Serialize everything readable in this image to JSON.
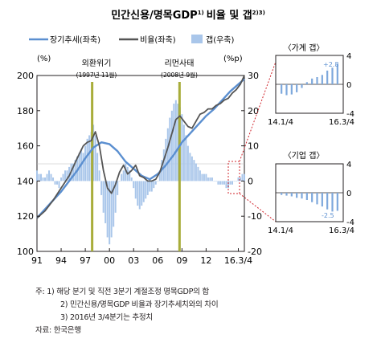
{
  "chart_data": [
    {
      "type": "bar+line",
      "title": "민간신용/명목GDP",
      "title_note": "1)",
      "title_suffix": "비율 및 갭",
      "title_suffix_note": "2)3)",
      "legend": [
        {
          "label": "장기추세(좌축)",
          "kind": "line",
          "color": "#5b8fd0"
        },
        {
          "label": "비율(좌축)",
          "kind": "line",
          "color": "#555555"
        },
        {
          "label": "갭(우축)",
          "kind": "bar",
          "color": "#a9c6ea"
        }
      ],
      "left_unit": "(%)",
      "right_unit": "(%p)",
      "left_ticks": [
        100,
        120,
        140,
        160,
        180,
        200
      ],
      "right_ticks": [
        -20,
        -10,
        0,
        10,
        20,
        30
      ],
      "x_ticks": [
        "91",
        "94",
        "97",
        "00",
        "03",
        "06",
        "09",
        "12",
        "16.3/4"
      ],
      "x_range": [
        1991.0,
        2016.75
      ],
      "left_range": [
        100,
        200
      ],
      "right_range": [
        -20,
        30
      ],
      "events": [
        {
          "label": "외환위기",
          "sub": "(1997년 11월)",
          "x": 1997.85
        },
        {
          "label": "리먼사태",
          "sub": "(2008년 9월)",
          "x": 2008.7
        }
      ],
      "trend": {
        "x": [
          1991,
          1992,
          1993,
          1994,
          1995,
          1996,
          1997,
          1998,
          1999,
          2000,
          2001,
          2002,
          2003,
          2004,
          2005,
          2006,
          2007,
          2008,
          2009,
          2010,
          2011,
          2012,
          2013,
          2014,
          2015,
          2016,
          2016.75
        ],
        "values": [
          119,
          124,
          129,
          134,
          140,
          146,
          153,
          159,
          162,
          161,
          157,
          151,
          147,
          143,
          141,
          144,
          149,
          155,
          162,
          167,
          172,
          177,
          181,
          186,
          191,
          195,
          198
        ]
      },
      "ratio": {
        "x": [
          1991,
          1992,
          1993,
          1994,
          1995,
          1996,
          1996.75,
          1997.25,
          1997.75,
          1998.25,
          1998.75,
          1999.25,
          1999.75,
          2000.25,
          2000.75,
          2001.25,
          2001.75,
          2002.25,
          2002.75,
          2003.25,
          2003.75,
          2004.25,
          2004.75,
          2005.25,
          2005.75,
          2006.25,
          2006.75,
          2007.25,
          2007.75,
          2008.25,
          2008.75,
          2009.25,
          2009.75,
          2010.25,
          2010.75,
          2011.25,
          2011.75,
          2012.25,
          2012.75,
          2013.25,
          2013.75,
          2014.25,
          2014.75,
          2015.25,
          2015.75,
          2016.25,
          2016.75
        ],
        "values": [
          119,
          123,
          129,
          136,
          143,
          153,
          160,
          162,
          163,
          168,
          160,
          146,
          136,
          133,
          138,
          145,
          149,
          144,
          146,
          149,
          143,
          142,
          140,
          140,
          141,
          145,
          152,
          159,
          167,
          175,
          177,
          174,
          171,
          170,
          174,
          178,
          179,
          181,
          181,
          183,
          184,
          186,
          187,
          190,
          192,
          195,
          200
        ]
      },
      "gap": {
        "x": [
          1991.0,
          1991.25,
          1991.5,
          1991.75,
          1992.0,
          1992.25,
          1992.5,
          1992.75,
          1993.0,
          1993.25,
          1993.5,
          1993.75,
          1994.0,
          1994.25,
          1994.5,
          1994.75,
          1995.0,
          1995.25,
          1995.5,
          1995.75,
          1996.0,
          1996.25,
          1996.5,
          1996.75,
          1997.0,
          1997.25,
          1997.5,
          1997.75,
          1998.0,
          1998.25,
          1998.5,
          1998.75,
          1999.0,
          1999.25,
          1999.5,
          1999.75,
          2000.0,
          2000.25,
          2000.5,
          2000.75,
          2001.0,
          2001.25,
          2001.5,
          2001.75,
          2002.0,
          2002.25,
          2002.5,
          2002.75,
          2003.0,
          2003.25,
          2003.5,
          2003.75,
          2004.0,
          2004.25,
          2004.5,
          2004.75,
          2005.0,
          2005.25,
          2005.5,
          2005.75,
          2006.0,
          2006.25,
          2006.5,
          2006.75,
          2007.0,
          2007.25,
          2007.5,
          2007.75,
          2008.0,
          2008.25,
          2008.5,
          2008.75,
          2009.0,
          2009.25,
          2009.5,
          2009.75,
          2010.0,
          2010.25,
          2010.5,
          2010.75,
          2011.0,
          2011.25,
          2011.5,
          2011.75,
          2012.0,
          2012.25,
          2012.5,
          2012.75,
          2013.0,
          2013.25,
          2013.5,
          2013.75,
          2014.0,
          2014.25,
          2014.5,
          2014.75,
          2015.0,
          2015.25,
          2015.5,
          2015.75,
          2016.0,
          2016.25,
          2016.5,
          2016.75
        ],
        "values": [
          3,
          2,
          2,
          1,
          1,
          2,
          3,
          2,
          1,
          -1,
          -1,
          -2,
          1,
          2,
          3,
          3,
          4,
          5,
          5,
          6,
          7,
          8,
          9,
          8,
          10,
          12,
          13,
          14,
          16,
          13,
          8,
          3,
          -4,
          -9,
          -12,
          -16,
          -18,
          -16,
          -13,
          -9,
          -4,
          0,
          2,
          3,
          5,
          4,
          3,
          1,
          -2,
          -5,
          -7,
          -8,
          -7,
          -6,
          -5,
          -4,
          -3,
          -3,
          -2,
          -1,
          0,
          3,
          6,
          9,
          12,
          15,
          18,
          20,
          22,
          23,
          22,
          21,
          19,
          16,
          13,
          10,
          8,
          7,
          6,
          5,
          4,
          3,
          2,
          2,
          2,
          1,
          1,
          1,
          0,
          0,
          -1,
          -1,
          -1,
          -1,
          -2,
          -2,
          -1,
          -1,
          0,
          0,
          1,
          1,
          2,
          2
        ]
      }
    },
    {
      "type": "bar",
      "title": "〈가계 갭〉",
      "x_ticks": [
        "14.1/4",
        "16.3/4"
      ],
      "y_ticks": [
        -4,
        0,
        4
      ],
      "ylim": [
        -4,
        4
      ],
      "annotation": "+2.8",
      "values": [
        -1.3,
        -1.5,
        -1.4,
        -1.1,
        -0.5,
        0.3,
        0.8,
        1.0,
        1.3,
        1.9,
        2.3,
        2.8
      ]
    },
    {
      "type": "bar",
      "title": "〈기업 갭〉",
      "x_ticks": [
        "14.1/4",
        "16.3/4"
      ],
      "y_ticks": [
        -4,
        0,
        4
      ],
      "ylim": [
        -4,
        4
      ],
      "annotation": "-2.5",
      "values": [
        -0.3,
        -0.4,
        -0.5,
        -0.7,
        -0.8,
        -1.0,
        -1.3,
        -1.6,
        -1.9,
        -2.3,
        -2.6,
        -2.5
      ]
    }
  ],
  "notes": {
    "line1": "주: 1) 해당 분기 및 직전 3분기 계절조정 명목GDP의 합",
    "line2": "2) 민간신용/명목GDP 비율과 장기추세치와의 차이",
    "line3": "3) 2016년 3/4분기는 추정치",
    "source": "자료: 한국은행"
  }
}
